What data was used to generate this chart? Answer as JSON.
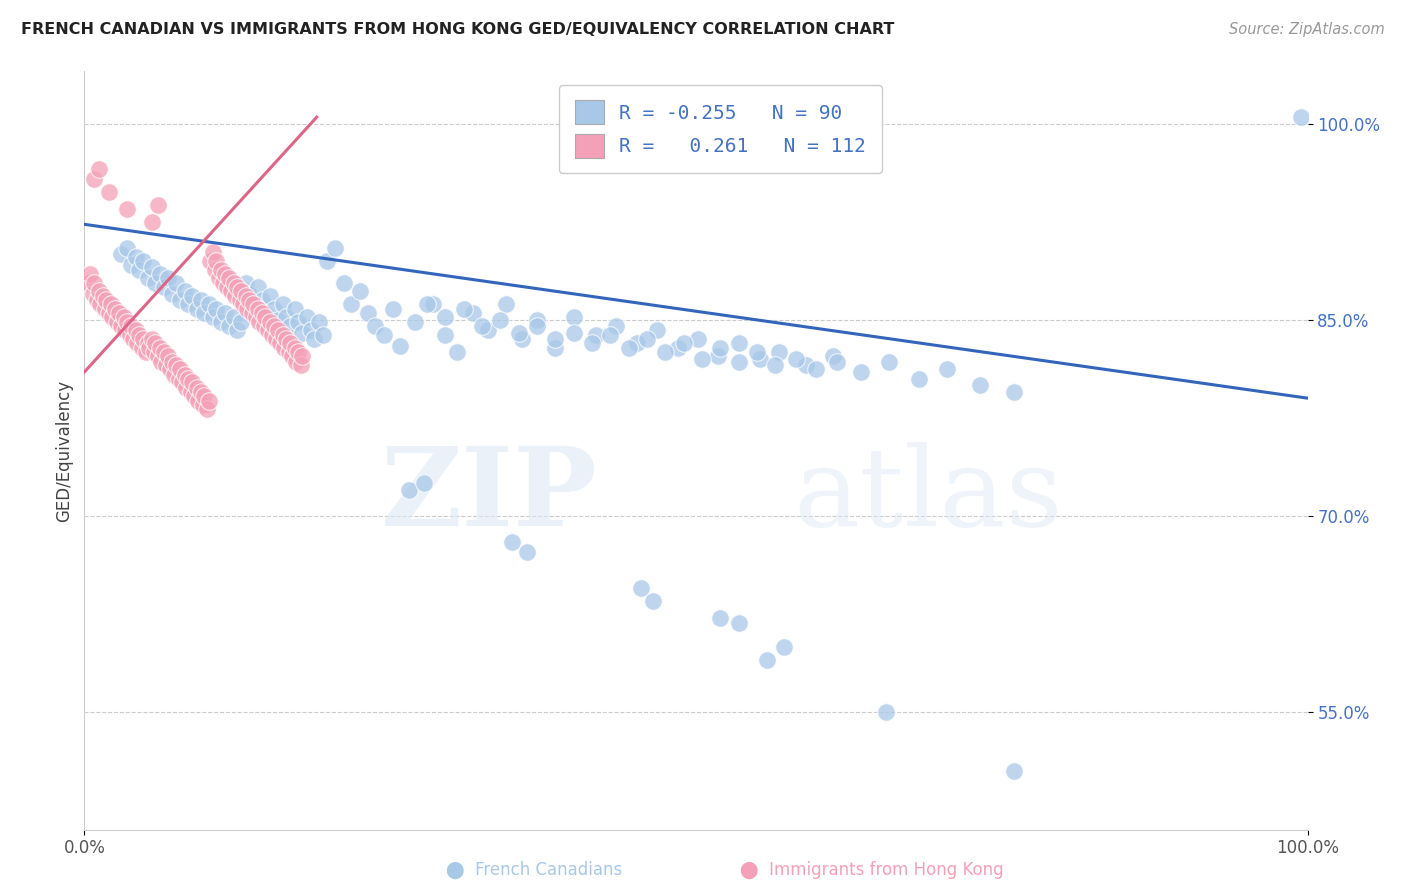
{
  "title": "FRENCH CANADIAN VS IMMIGRANTS FROM HONG KONG GED/EQUIVALENCY CORRELATION CHART",
  "source": "Source: ZipAtlas.com",
  "ylabel": "GED/Equivalency",
  "xlabel": "",
  "xlim": [
    0.0,
    1.0
  ],
  "ylim": [
    0.46,
    1.04
  ],
  "yticks": [
    0.55,
    0.7,
    0.85,
    1.0
  ],
  "ytick_labels": [
    "55.0%",
    "70.0%",
    "85.0%",
    "100.0%"
  ],
  "xticks": [
    0.0,
    1.0
  ],
  "xtick_labels": [
    "0.0%",
    "100.0%"
  ],
  "blue_color": "#A8C8E8",
  "pink_color": "#F4A0B8",
  "blue_line_color": "#3366BB",
  "pink_line_color": "#DD6688",
  "legend_R1": "-0.255",
  "legend_N1": "90",
  "legend_R2": "0.261",
  "legend_N2": "112",
  "watermark_zip": "ZIP",
  "watermark_atlas": "atlas",
  "blue_line_x0": 0.0,
  "blue_line_y0": 0.923,
  "blue_line_x1": 1.0,
  "blue_line_y1": 0.79,
  "pink_line_x0": 0.0,
  "pink_line_y0": 0.81,
  "pink_line_x1": 0.19,
  "pink_line_y1": 1.005,
  "blue_scatter_x": [
    0.03,
    0.035,
    0.038,
    0.042,
    0.045,
    0.048,
    0.052,
    0.055,
    0.058,
    0.062,
    0.065,
    0.068,
    0.072,
    0.075,
    0.078,
    0.082,
    0.085,
    0.088,
    0.092,
    0.095,
    0.098,
    0.102,
    0.105,
    0.108,
    0.112,
    0.115,
    0.118,
    0.122,
    0.125,
    0.128,
    0.132,
    0.135,
    0.138,
    0.142,
    0.145,
    0.148,
    0.152,
    0.155,
    0.158,
    0.162,
    0.165,
    0.168,
    0.172,
    0.175,
    0.178,
    0.182,
    0.185,
    0.188,
    0.192,
    0.195,
    0.198,
    0.205,
    0.212,
    0.218,
    0.225,
    0.232,
    0.238,
    0.245,
    0.252,
    0.258,
    0.27,
    0.285,
    0.295,
    0.305,
    0.318,
    0.33,
    0.345,
    0.358,
    0.37,
    0.385,
    0.4,
    0.418,
    0.435,
    0.452,
    0.468,
    0.485,
    0.502,
    0.518,
    0.535,
    0.552,
    0.568,
    0.59,
    0.612,
    0.635,
    0.658,
    0.682,
    0.705,
    0.732,
    0.76,
    0.995
  ],
  "blue_scatter_y": [
    0.9,
    0.905,
    0.892,
    0.898,
    0.888,
    0.895,
    0.882,
    0.89,
    0.878,
    0.885,
    0.875,
    0.882,
    0.87,
    0.878,
    0.865,
    0.872,
    0.862,
    0.868,
    0.858,
    0.865,
    0.855,
    0.862,
    0.852,
    0.858,
    0.848,
    0.855,
    0.845,
    0.852,
    0.842,
    0.848,
    0.878,
    0.87,
    0.862,
    0.875,
    0.865,
    0.855,
    0.868,
    0.858,
    0.85,
    0.862,
    0.852,
    0.845,
    0.858,
    0.848,
    0.84,
    0.852,
    0.842,
    0.835,
    0.848,
    0.838,
    0.895,
    0.905,
    0.878,
    0.862,
    0.872,
    0.855,
    0.845,
    0.838,
    0.858,
    0.83,
    0.848,
    0.862,
    0.838,
    0.825,
    0.855,
    0.842,
    0.862,
    0.835,
    0.85,
    0.828,
    0.852,
    0.838,
    0.845,
    0.832,
    0.842,
    0.828,
    0.835,
    0.822,
    0.832,
    0.82,
    0.825,
    0.815,
    0.822,
    0.81,
    0.818,
    0.805,
    0.812,
    0.8,
    0.795,
    1.005
  ],
  "blue_outlier_x": [
    0.265,
    0.278,
    0.35,
    0.362,
    0.455,
    0.465,
    0.52,
    0.535,
    0.572,
    0.558,
    0.655,
    0.76
  ],
  "blue_outlier_y": [
    0.72,
    0.725,
    0.68,
    0.672,
    0.645,
    0.635,
    0.622,
    0.618,
    0.6,
    0.59,
    0.55,
    0.505
  ],
  "blue_mid_x": [
    0.28,
    0.295,
    0.31,
    0.325,
    0.34,
    0.355,
    0.37,
    0.385,
    0.4,
    0.415,
    0.43,
    0.445,
    0.46,
    0.475,
    0.49,
    0.505,
    0.52,
    0.535,
    0.55,
    0.565,
    0.582,
    0.598,
    0.615
  ],
  "blue_mid_y": [
    0.862,
    0.852,
    0.858,
    0.845,
    0.85,
    0.84,
    0.845,
    0.835,
    0.84,
    0.832,
    0.838,
    0.828,
    0.835,
    0.825,
    0.832,
    0.82,
    0.828,
    0.818,
    0.825,
    0.815,
    0.82,
    0.812,
    0.818
  ],
  "pink_scatter_x": [
    0.003,
    0.005,
    0.007,
    0.008,
    0.01,
    0.012,
    0.013,
    0.015,
    0.017,
    0.018,
    0.02,
    0.022,
    0.023,
    0.025,
    0.027,
    0.028,
    0.03,
    0.032,
    0.033,
    0.035,
    0.037,
    0.038,
    0.04,
    0.042,
    0.043,
    0.045,
    0.047,
    0.048,
    0.05,
    0.052,
    0.053,
    0.055,
    0.057,
    0.058,
    0.06,
    0.062,
    0.063,
    0.065,
    0.067,
    0.068,
    0.07,
    0.072,
    0.073,
    0.075,
    0.077,
    0.078,
    0.08,
    0.082,
    0.083,
    0.085,
    0.087,
    0.088,
    0.09,
    0.092,
    0.093,
    0.095,
    0.097,
    0.098,
    0.1,
    0.102,
    0.103,
    0.105,
    0.107,
    0.108,
    0.11,
    0.112,
    0.113,
    0.115,
    0.117,
    0.118,
    0.12,
    0.122,
    0.123,
    0.125,
    0.127,
    0.128,
    0.13,
    0.132,
    0.133,
    0.135,
    0.137,
    0.138,
    0.14,
    0.142,
    0.143,
    0.145,
    0.147,
    0.148,
    0.15,
    0.152,
    0.153,
    0.155,
    0.157,
    0.158,
    0.16,
    0.162,
    0.163,
    0.165,
    0.167,
    0.168,
    0.17,
    0.172,
    0.173,
    0.175,
    0.177,
    0.178,
    0.008,
    0.012,
    0.02,
    0.035,
    0.06,
    0.055
  ],
  "pink_scatter_y": [
    0.878,
    0.885,
    0.87,
    0.878,
    0.865,
    0.872,
    0.862,
    0.868,
    0.858,
    0.865,
    0.855,
    0.862,
    0.852,
    0.858,
    0.848,
    0.855,
    0.845,
    0.852,
    0.842,
    0.848,
    0.838,
    0.845,
    0.835,
    0.842,
    0.832,
    0.838,
    0.828,
    0.835,
    0.825,
    0.832,
    0.828,
    0.835,
    0.825,
    0.832,
    0.822,
    0.828,
    0.818,
    0.825,
    0.815,
    0.822,
    0.812,
    0.818,
    0.808,
    0.815,
    0.805,
    0.812,
    0.802,
    0.808,
    0.798,
    0.805,
    0.795,
    0.802,
    0.792,
    0.798,
    0.788,
    0.795,
    0.785,
    0.792,
    0.782,
    0.788,
    0.895,
    0.902,
    0.888,
    0.895,
    0.882,
    0.888,
    0.878,
    0.885,
    0.875,
    0.882,
    0.872,
    0.878,
    0.868,
    0.875,
    0.865,
    0.872,
    0.862,
    0.868,
    0.858,
    0.865,
    0.855,
    0.862,
    0.852,
    0.858,
    0.848,
    0.855,
    0.845,
    0.852,
    0.842,
    0.848,
    0.838,
    0.845,
    0.835,
    0.842,
    0.832,
    0.838,
    0.828,
    0.835,
    0.825,
    0.832,
    0.822,
    0.828,
    0.818,
    0.825,
    0.815,
    0.822,
    0.958,
    0.965,
    0.948,
    0.935,
    0.938,
    0.925
  ]
}
